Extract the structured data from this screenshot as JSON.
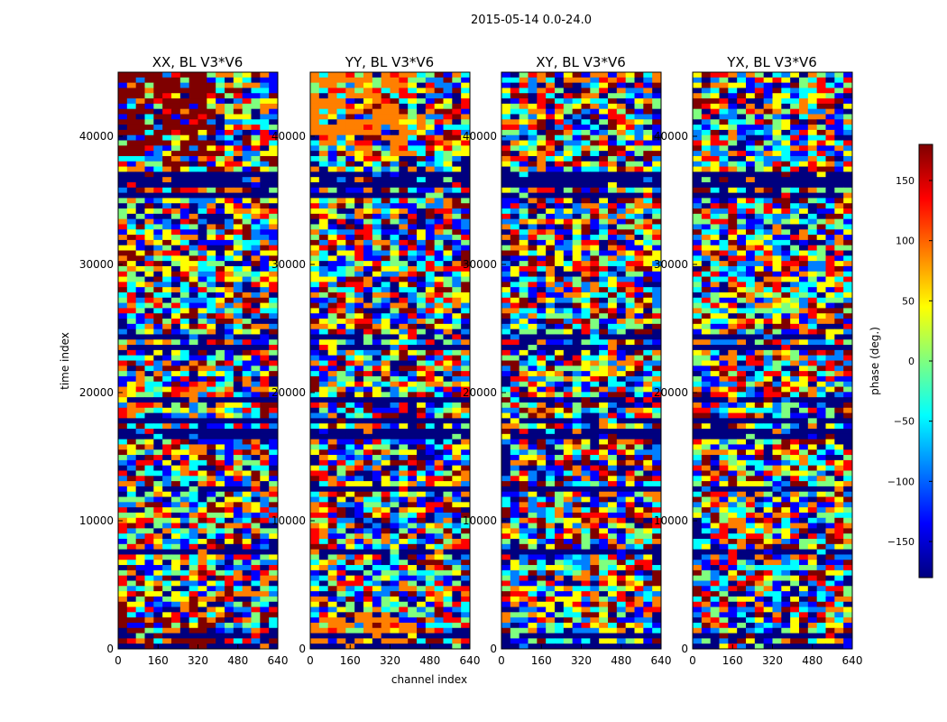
{
  "figure": {
    "suptitle": "2015-05-14 0.0-24.0"
  },
  "chart_data": [
    {
      "type": "heatmap",
      "title": "XX, BL V3*V6",
      "xlabel": "",
      "ylabel": "time index",
      "xlim": [
        0,
        640
      ],
      "ylim": [
        0,
        45000
      ],
      "x_ticks": [
        "0",
        "160",
        "320",
        "480",
        "640"
      ],
      "y_ticks": [
        "0",
        "10000",
        "20000",
        "30000",
        "40000"
      ]
    },
    {
      "type": "heatmap",
      "title": "YY, BL V3*V6",
      "xlabel": "channel index",
      "ylabel": "",
      "xlim": [
        0,
        640
      ],
      "ylim": [
        0,
        45000
      ],
      "x_ticks": [
        "0",
        "160",
        "320",
        "480",
        "640"
      ],
      "y_ticks": [
        "0",
        "10000",
        "20000",
        "30000",
        "40000"
      ]
    },
    {
      "type": "heatmap",
      "title": "XY, BL V3*V6",
      "xlabel": "",
      "ylabel": "",
      "xlim": [
        0,
        640
      ],
      "ylim": [
        0,
        45000
      ],
      "x_ticks": [
        "0",
        "160",
        "320",
        "480",
        "640"
      ],
      "y_ticks": [
        "0",
        "10000",
        "20000",
        "30000",
        "40000"
      ]
    },
    {
      "type": "heatmap",
      "title": "YX, BL V3*V6",
      "xlabel": "",
      "ylabel": "",
      "xlim": [
        0,
        640
      ],
      "ylim": [
        0,
        45000
      ],
      "x_ticks": [
        "0",
        "160",
        "320",
        "480",
        "640"
      ],
      "y_ticks": [
        "0",
        "10000",
        "20000",
        "30000",
        "40000"
      ]
    }
  ],
  "colorbar": {
    "label": "phase (deg.)",
    "range": [
      -180,
      180
    ],
    "ticks": [
      "150",
      "100",
      "50",
      "0",
      "−50",
      "−100",
      "−150"
    ],
    "colormap": "jet",
    "colors": [
      "#00007f",
      "#0000ff",
      "#007fff",
      "#00ffff",
      "#7fff7f",
      "#ffff00",
      "#ff7f00",
      "#ff0000",
      "#7f0000"
    ]
  }
}
